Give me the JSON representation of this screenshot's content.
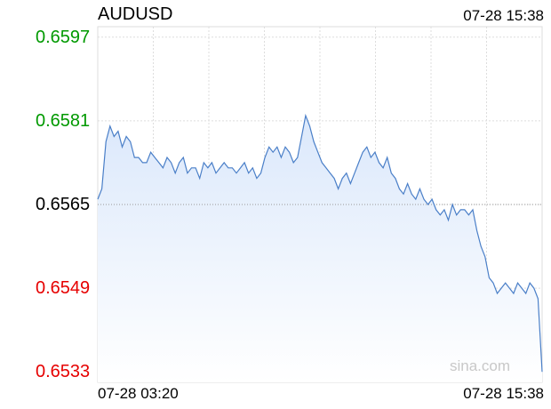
{
  "header": {
    "symbol": "AUDUSD",
    "timestamp": "07-28 15:38"
  },
  "watermark": "sina.com",
  "colors": {
    "up": "#009900",
    "down": "#e60000",
    "neutral": "#000000",
    "line": "#4a7fc8",
    "fill_top": "#dbe8fb",
    "fill_bottom": "#ffffff",
    "grid": "#dddddd"
  },
  "chart_data": {
    "type": "area",
    "title": "AUDUSD",
    "xlabel": "",
    "ylabel": "",
    "ylim": [
      0.6531,
      0.6599
    ],
    "y_ticks": [
      {
        "value": 0.6597,
        "label": "0.6597",
        "tone": "up"
      },
      {
        "value": 0.6581,
        "label": "0.6581",
        "tone": "up"
      },
      {
        "value": 0.6565,
        "label": "0.6565",
        "tone": "neutral"
      },
      {
        "value": 0.6549,
        "label": "0.6549",
        "tone": "down"
      },
      {
        "value": 0.6533,
        "label": "0.6533",
        "tone": "down"
      }
    ],
    "reference_value": 0.6565,
    "x_range": [
      "07-28 03:20",
      "07-28 15:38"
    ],
    "x_tick_labels": [
      "07-28 03:20",
      "07-28 15:38"
    ],
    "grid": true,
    "series": [
      {
        "values": [
          0.6566,
          0.6568,
          0.6577,
          0.658,
          0.6578,
          0.6579,
          0.6576,
          0.6578,
          0.6577,
          0.6574,
          0.6574,
          0.6573,
          0.6573,
          0.6575,
          0.6574,
          0.6573,
          0.6572,
          0.6574,
          0.6573,
          0.6571,
          0.6573,
          0.6574,
          0.6571,
          0.6572,
          0.6572,
          0.657,
          0.6573,
          0.6572,
          0.6573,
          0.6571,
          0.6572,
          0.6573,
          0.6572,
          0.6572,
          0.6571,
          0.6572,
          0.6573,
          0.6571,
          0.6572,
          0.657,
          0.6571,
          0.6574,
          0.6576,
          0.6575,
          0.6576,
          0.6574,
          0.6576,
          0.6575,
          0.6573,
          0.6574,
          0.6578,
          0.6582,
          0.658,
          0.6577,
          0.6575,
          0.6573,
          0.6572,
          0.6571,
          0.657,
          0.6568,
          0.657,
          0.6571,
          0.6569,
          0.6571,
          0.6573,
          0.6575,
          0.6576,
          0.6574,
          0.6575,
          0.6573,
          0.6572,
          0.6574,
          0.6571,
          0.657,
          0.6568,
          0.6567,
          0.6569,
          0.6567,
          0.6566,
          0.6568,
          0.6566,
          0.6565,
          0.6566,
          0.6564,
          0.6563,
          0.6564,
          0.6562,
          0.6565,
          0.6563,
          0.6564,
          0.6564,
          0.6563,
          0.6564,
          0.656,
          0.6557,
          0.6555,
          0.6551,
          0.655,
          0.6548,
          0.6549,
          0.655,
          0.6549,
          0.6548,
          0.655,
          0.6549,
          0.6548,
          0.655,
          0.6549,
          0.6547,
          0.6533
        ]
      }
    ]
  }
}
